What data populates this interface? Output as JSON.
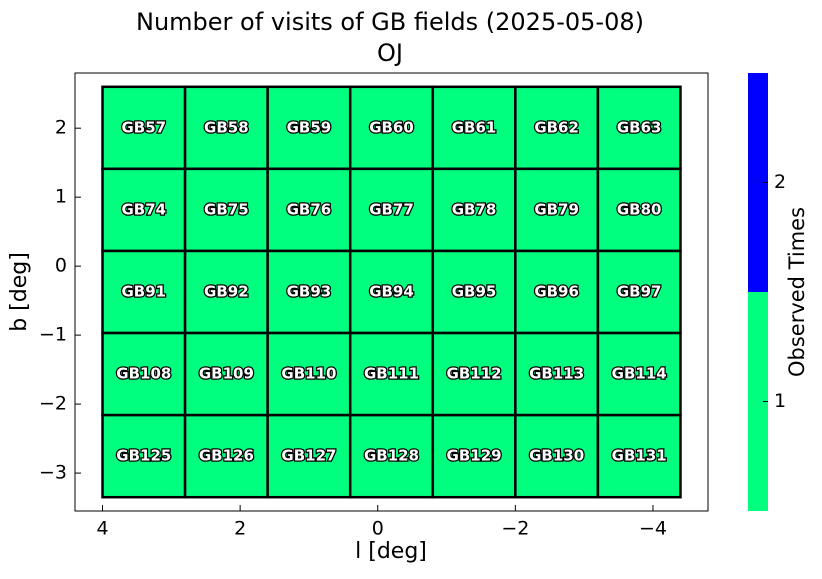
{
  "chart_data": {
    "type": "heatmap",
    "title": "Number of visits of GB fields (2025-05-08)",
    "subtitle": "OJ",
    "x_label": "l [deg]",
    "y_label": "b [deg]",
    "xlim": [
      4.4,
      -4.8
    ],
    "ylim": [
      -3.55,
      2.8
    ],
    "xticks": [
      4,
      2,
      0,
      {
        "value": -2,
        "label": "−2"
      },
      {
        "value": -4,
        "label": "−4"
      }
    ],
    "yticks": [
      {
        "value": -3,
        "label": "−3"
      },
      {
        "value": -2,
        "label": "−2"
      },
      {
        "value": -1,
        "label": "−1"
      },
      0,
      1,
      2
    ],
    "x_edges": [
      4.0,
      2.8,
      1.6,
      0.4,
      -0.8,
      -2.0,
      -3.2,
      -4.4
    ],
    "y_edges": [
      2.6,
      1.41,
      0.22,
      -0.97,
      -2.16,
      -3.35
    ],
    "fields": [
      [
        "GB57",
        "GB58",
        "GB59",
        "GB60",
        "GB61",
        "GB62",
        "GB63"
      ],
      [
        "GB74",
        "GB75",
        "GB76",
        "GB77",
        "GB78",
        "GB79",
        "GB80"
      ],
      [
        "GB91",
        "GB92",
        "GB93",
        "GB94",
        "GB95",
        "GB96",
        "GB97"
      ],
      [
        "GB108",
        "GB109",
        "GB110",
        "GB111",
        "GB112",
        "GB113",
        "GB114"
      ],
      [
        "GB125",
        "GB126",
        "GB127",
        "GB128",
        "GB129",
        "GB130",
        "GB131"
      ]
    ],
    "values": [
      [
        1,
        1,
        1,
        1,
        1,
        1,
        1
      ],
      [
        1,
        1,
        1,
        1,
        1,
        1,
        1
      ],
      [
        1,
        1,
        1,
        1,
        1,
        1,
        1
      ],
      [
        1,
        1,
        1,
        1,
        1,
        1,
        1
      ],
      [
        1,
        1,
        1,
        1,
        1,
        1,
        1
      ]
    ],
    "colorbar": {
      "label": "Observed Times",
      "boundaries": [
        0.5,
        1.5,
        2.5
      ],
      "colors": [
        "#00ff7f",
        "#0000ff"
      ],
      "ticks": [
        1,
        2
      ]
    }
  }
}
